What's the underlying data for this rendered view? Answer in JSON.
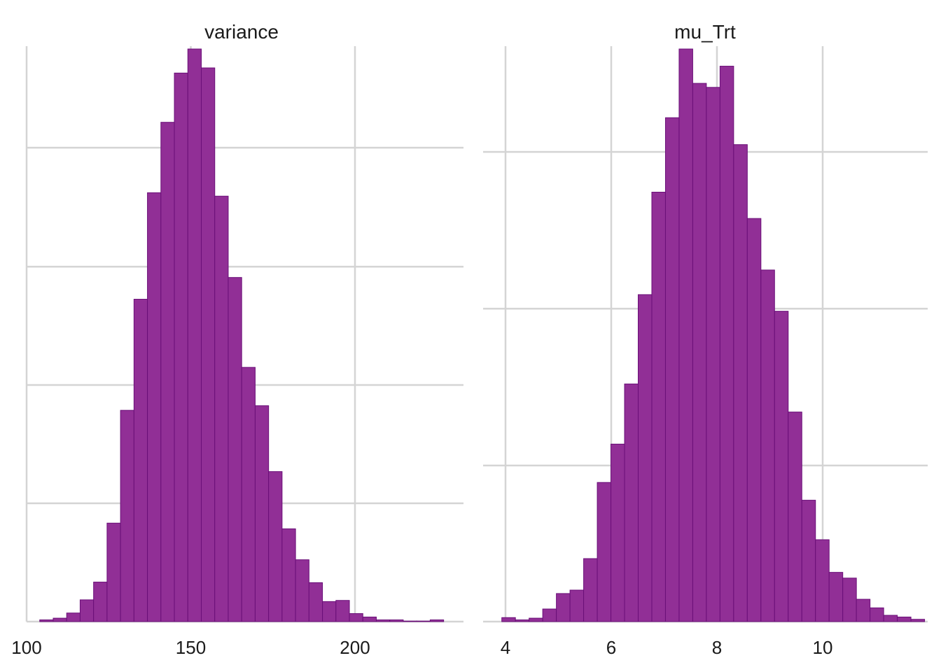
{
  "chart_data": [
    {
      "type": "bar",
      "title": "variance",
      "xlim": [
        100,
        230
      ],
      "ylim": [
        0,
        1
      ],
      "xticks": [
        100,
        150,
        200
      ],
      "xtick_labels": [
        "100",
        "150",
        "200"
      ],
      "bin_start": 104,
      "bin_width": 4.1,
      "values": [
        0.003,
        0.006,
        0.015,
        0.038,
        0.069,
        0.172,
        0.369,
        0.563,
        0.749,
        0.872,
        0.958,
        1.0,
        0.967,
        0.743,
        0.601,
        0.444,
        0.377,
        0.262,
        0.162,
        0.108,
        0.068,
        0.035,
        0.037,
        0.014,
        0.008,
        0.003,
        0.003,
        0.001,
        0.001,
        0.003
      ],
      "grid": {
        "horizontal": true,
        "vertical_at_major_ticks": true
      },
      "bar_color": "#912f96",
      "bar_outline": "#6a0f78",
      "grid_color": "#d4d4d4"
    },
    {
      "type": "bar",
      "title": "mu_Trt",
      "xlim": [
        3.7,
        11.7
      ],
      "ylim": [
        0,
        1
      ],
      "xticks": [
        4,
        6,
        8,
        10
      ],
      "xtick_labels": [
        "4",
        "6",
        "8",
        "10"
      ],
      "bin_start": 3.93,
      "bin_width": 0.258,
      "values": [
        0.007,
        0.003,
        0.006,
        0.022,
        0.049,
        0.055,
        0.11,
        0.243,
        0.31,
        0.415,
        0.571,
        0.75,
        0.88,
        1.0,
        0.94,
        0.933,
        0.97,
        0.833,
        0.704,
        0.614,
        0.542,
        0.366,
        0.212,
        0.143,
        0.086,
        0.076,
        0.039,
        0.024,
        0.011,
        0.008,
        0.004
      ]
    }
  ]
}
